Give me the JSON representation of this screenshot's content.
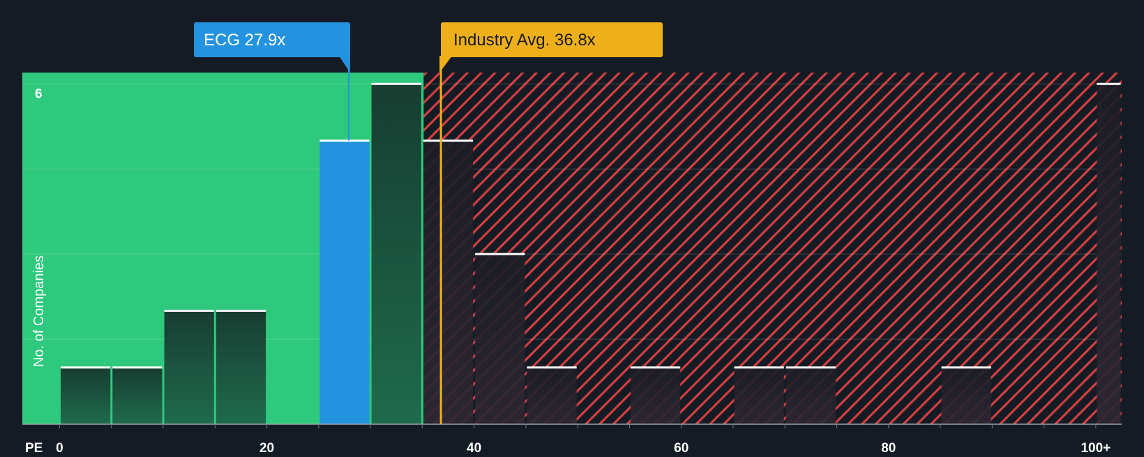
{
  "colors": {
    "background": "#151b24",
    "fair_zone": "#2ec97c",
    "overvalued_zone": "#d43f3f",
    "company": "#2393e0",
    "industry": "#eeb01a",
    "bar_dark": "#1b4d3b",
    "bar_on_red": "#2b2530",
    "bar_cap": "#ffffff",
    "axis_text": "#ffffff",
    "grid": "#ffffff"
  },
  "chart_data": {
    "type": "bar",
    "title": "",
    "xlabel": "PE",
    "ylabel": "No. of Companies",
    "xlim": [
      -3.6,
      102.5
    ],
    "ylim": [
      0,
      6.2
    ],
    "x_ticks": [
      {
        "value": 0,
        "label": "0"
      },
      {
        "value": 20,
        "label": "20"
      },
      {
        "value": 40,
        "label": "40"
      },
      {
        "value": 60,
        "label": "60"
      },
      {
        "value": 80,
        "label": "80"
      },
      {
        "value": 100,
        "label": "100+"
      }
    ],
    "y_ticks": [
      {
        "value": 6,
        "label": "6"
      }
    ],
    "gridlines_y": [
      1.5,
      3,
      4.5,
      6
    ],
    "bins": [
      {
        "start": 0,
        "end": 5,
        "count": 1
      },
      {
        "start": 5,
        "end": 10,
        "count": 1
      },
      {
        "start": 10,
        "end": 15,
        "count": 2
      },
      {
        "start": 15,
        "end": 20,
        "count": 2
      },
      {
        "start": 25,
        "end": 30,
        "count": 5,
        "highlight": "company"
      },
      {
        "start": 30,
        "end": 35,
        "count": 6
      },
      {
        "start": 35,
        "end": 40,
        "count": 5
      },
      {
        "start": 40,
        "end": 45,
        "count": 3
      },
      {
        "start": 45,
        "end": 50,
        "count": 1
      },
      {
        "start": 55,
        "end": 60,
        "count": 1
      },
      {
        "start": 65,
        "end": 70,
        "count": 1
      },
      {
        "start": 70,
        "end": 75,
        "count": 1
      },
      {
        "start": 85,
        "end": 90,
        "count": 1
      },
      {
        "start": 100,
        "end": 102.5,
        "count": 6
      }
    ],
    "fair_zone_end": 35,
    "company": {
      "name": "ECG",
      "value": 27.9,
      "label": "ECG 27.9x"
    },
    "industry": {
      "label": "Industry Avg. 36.8x",
      "value": 36.8
    }
  }
}
